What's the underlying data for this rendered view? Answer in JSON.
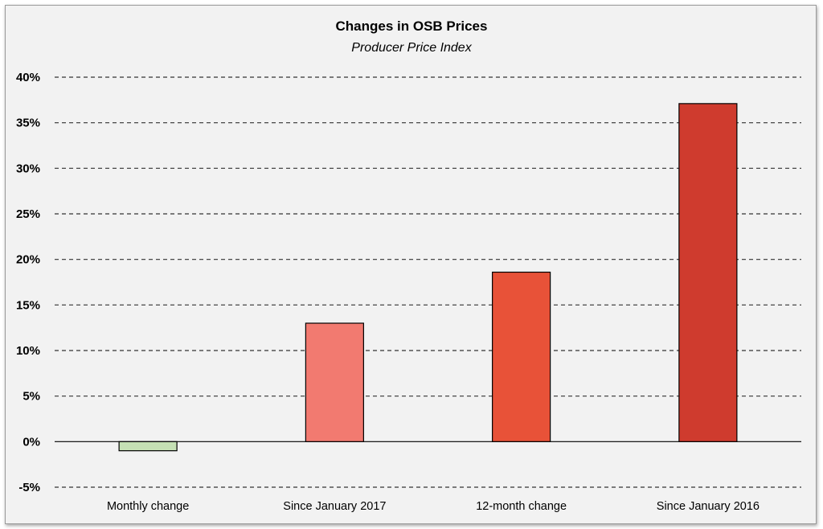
{
  "chart_data": {
    "type": "bar",
    "title": "Changes in OSB Prices",
    "subtitle": "Producer Price Index",
    "categories": [
      "Monthly change",
      "Since January 2017",
      "12-month change",
      "Since January 2016"
    ],
    "values": [
      -1.0,
      13.0,
      18.6,
      37.1
    ],
    "colors": [
      "#c5e0b4",
      "#f27a70",
      "#e85238",
      "#cf3b2e"
    ],
    "ylim": [
      -5,
      40
    ],
    "yticks": [
      40,
      35,
      30,
      25,
      20,
      15,
      10,
      5,
      0,
      -5
    ],
    "ytick_labels": [
      "40%",
      "35%",
      "30%",
      "25%",
      "20%",
      "15%",
      "10%",
      "5%",
      "0%",
      "-5%"
    ],
    "grid": true,
    "legend": "none"
  }
}
